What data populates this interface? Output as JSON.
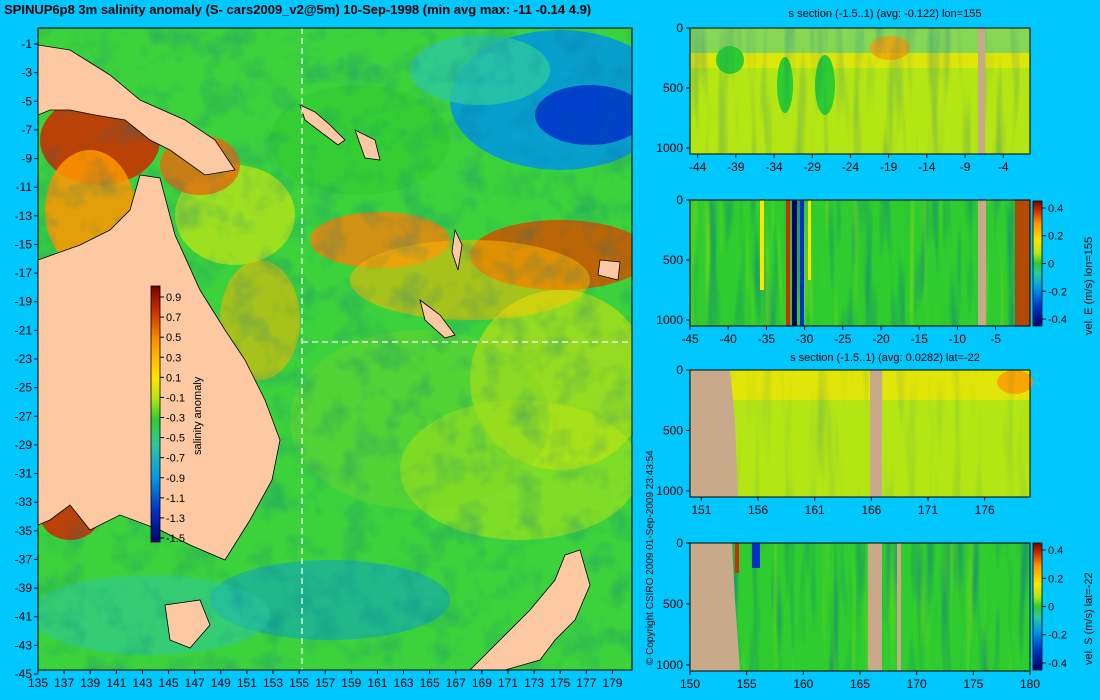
{
  "title": "SPINUP6p8 3m salinity anomaly (S- cars2009_v2@5m) 10-Sep-1998 (min avg max: -11 -0.14 4.9)",
  "copyright": "© Copyright CSIRO 2009   01-Sep-2009 23:43:54",
  "colors": {
    "background": "#00c8ff",
    "land": "#fdc9a2",
    "section_land": "#c8aa8a",
    "colormap": [
      "#00006e",
      "#0030c8",
      "#0096e6",
      "#2ec8a0",
      "#2ecc2e",
      "#b4e614",
      "#ffe600",
      "#ff9600",
      "#c83200",
      "#780000"
    ]
  },
  "chart_data": [
    {
      "type": "heatmap",
      "name": "map",
      "x_ticks": [
        135,
        137,
        139,
        141,
        143,
        145,
        147,
        149,
        151,
        153,
        155,
        157,
        159,
        161,
        163,
        165,
        167,
        169,
        171,
        173,
        175,
        177,
        179
      ],
      "y_ticks": [
        -1,
        -3,
        -5,
        -7,
        -9,
        -11,
        -13,
        -15,
        -17,
        -19,
        -21,
        -23,
        -25,
        -27,
        -29,
        -31,
        -33,
        -35,
        -37,
        -39,
        -41,
        -43,
        -45
      ],
      "xlim": [
        135,
        180
      ],
      "ylim": [
        -45,
        0
      ],
      "section_lon": 155,
      "section_lat": -22,
      "colorbar": {
        "label": "salinity anomaly",
        "ticks": [
          "0.9",
          "0.7",
          "0.5",
          "0.3",
          "0.1",
          "-0.1",
          "-0.3",
          "-0.5",
          "-0.7",
          "-0.9",
          "-1.1",
          "-1.3",
          "-1.5"
        ],
        "range": [
          -1.5,
          0.9
        ]
      }
    },
    {
      "type": "heatmap",
      "name": "salinity-section-lon155",
      "title": "s section (-1.5..1) (avg: -0.122) lon=155",
      "x_ticks": [
        "-44",
        "-39",
        "-34",
        "-29",
        "-24",
        "-19",
        "-14",
        "-9",
        "-4"
      ],
      "x_tick_values": [
        -44,
        -39,
        -34,
        -29,
        -24,
        -19,
        -14,
        -9,
        -4
      ],
      "xlim": [
        -45,
        -0.5
      ],
      "y_ticks": [
        "0",
        "500",
        "1000"
      ],
      "y_tick_values": [
        0,
        500,
        1000
      ],
      "ylim": [
        0,
        1050
      ]
    },
    {
      "type": "heatmap",
      "name": "velocity-east-section-lon155",
      "x_ticks": [
        "-45",
        "-40",
        "-35",
        "-30",
        "-25",
        "-20",
        "-15",
        "-10",
        "-5"
      ],
      "x_tick_values": [
        -45,
        -40,
        -35,
        -30,
        -25,
        -20,
        -15,
        -10,
        -5
      ],
      "xlim": [
        -45,
        -0.5
      ],
      "y_ticks": [
        "0",
        "500",
        "1000"
      ],
      "y_tick_values": [
        0,
        500,
        1000
      ],
      "ylim": [
        0,
        1050
      ],
      "colorbar": {
        "label": "vel. E (m/s) lon=155",
        "ticks": [
          "0.4",
          "0.2",
          "0",
          "-0.2",
          "-0.4"
        ],
        "range": [
          -0.45,
          0.45
        ]
      }
    },
    {
      "type": "heatmap",
      "name": "salinity-section-lat-22",
      "title": "s section (-1.5..1) (avg: 0.0282) lat=-22",
      "x_ticks": [
        "151",
        "156",
        "161",
        "166",
        "171",
        "176"
      ],
      "x_tick_values": [
        151,
        156,
        161,
        166,
        171,
        176
      ],
      "xlim": [
        150,
        180
      ],
      "y_ticks": [
        "0",
        "500",
        "1000"
      ],
      "y_tick_values": [
        0,
        500,
        1000
      ],
      "ylim": [
        0,
        1050
      ]
    },
    {
      "type": "heatmap",
      "name": "velocity-south-section-lat-22",
      "x_ticks": [
        "150",
        "155",
        "160",
        "165",
        "170",
        "175",
        "180"
      ],
      "x_tick_values": [
        150,
        155,
        160,
        165,
        170,
        175,
        180
      ],
      "xlim": [
        150,
        180
      ],
      "y_ticks": [
        "0",
        "500",
        "1000"
      ],
      "y_tick_values": [
        0,
        500,
        1000
      ],
      "ylim": [
        0,
        1050
      ],
      "colorbar": {
        "label": "vel. S (m/s) lat=-22",
        "ticks": [
          "0.4",
          "0.2",
          "0",
          "-0.2",
          "-0.4"
        ],
        "range": [
          -0.45,
          0.45
        ]
      }
    }
  ]
}
